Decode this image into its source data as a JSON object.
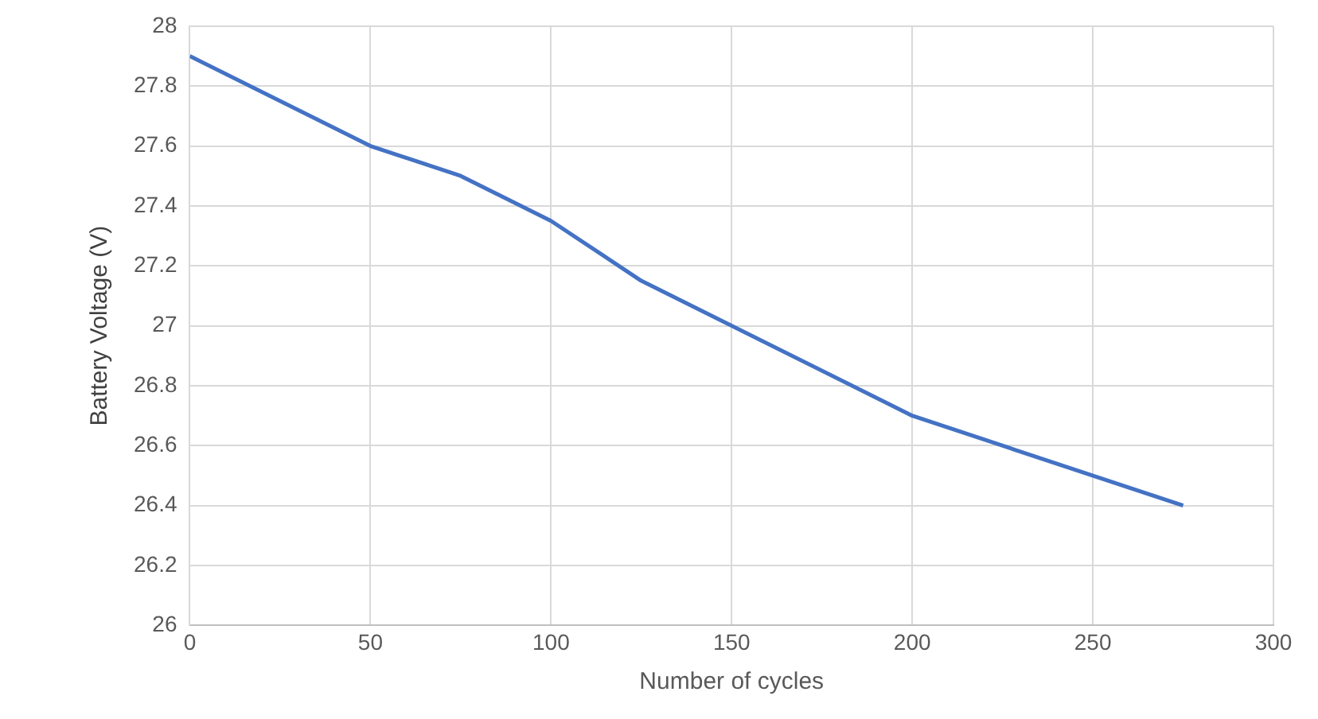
{
  "chart_data": {
    "type": "line",
    "xlabel": "Number of cycles",
    "ylabel": "Battery Voltage (V)",
    "x": [
      0,
      50,
      75,
      100,
      125,
      200,
      275
    ],
    "series": [
      {
        "color": "#4472c4",
        "values": [
          27.9,
          27.6,
          27.5,
          27.35,
          27.15,
          26.7,
          26.4
        ]
      }
    ],
    "xlim": [
      0,
      300
    ],
    "xticks": [
      0,
      50,
      100,
      150,
      200,
      250,
      300
    ],
    "ylim": [
      26,
      28
    ],
    "yticks": [
      26,
      26.2,
      26.4,
      26.6,
      26.8,
      27,
      27.2,
      27.4,
      27.6,
      27.8,
      28
    ],
    "grid": true,
    "legend": false,
    "marker": "none",
    "line_style": "solid"
  }
}
